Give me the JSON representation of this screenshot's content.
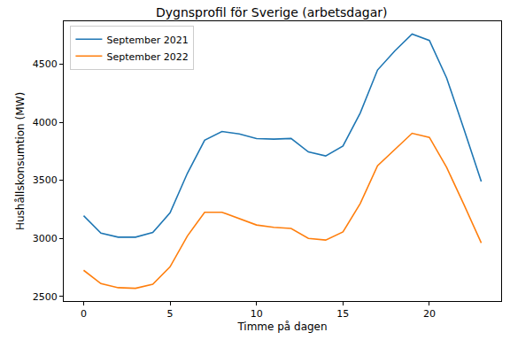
{
  "chart_data": {
    "type": "line",
    "title": "Dygnsprofil för Sverige (arbetsdagar)",
    "x_label": "Timme på dagen",
    "y_label": "Hushållskonsumtion (MW)",
    "x": [
      0,
      1,
      2,
      3,
      4,
      5,
      6,
      7,
      8,
      9,
      10,
      11,
      12,
      13,
      14,
      15,
      16,
      17,
      18,
      19,
      20,
      21,
      22,
      23
    ],
    "series": [
      {
        "name": "September 2021",
        "color": "#1f77b4",
        "values": [
          3195,
          3045,
          3010,
          3010,
          3050,
          3220,
          3560,
          3845,
          3920,
          3900,
          3860,
          3855,
          3860,
          3745,
          3710,
          3795,
          4080,
          4450,
          4615,
          4760,
          4705,
          4380,
          3940,
          3490
        ]
      },
      {
        "name": "September 2022",
        "color": "#ff7f0e",
        "values": [
          2725,
          2610,
          2575,
          2570,
          2605,
          2755,
          3020,
          3225,
          3225,
          3170,
          3115,
          3095,
          3085,
          3000,
          2985,
          3055,
          3300,
          3625,
          3765,
          3905,
          3870,
          3610,
          3290,
          2960
        ]
      }
    ],
    "xlim": [
      -1.15,
      24.15
    ],
    "xticks": [
      0,
      5,
      10,
      15,
      20
    ],
    "ylim": [
      2460,
      4870
    ],
    "yticks": [
      2500,
      3000,
      3500,
      4000,
      4500
    ],
    "grid": false,
    "legend": "upper left"
  }
}
